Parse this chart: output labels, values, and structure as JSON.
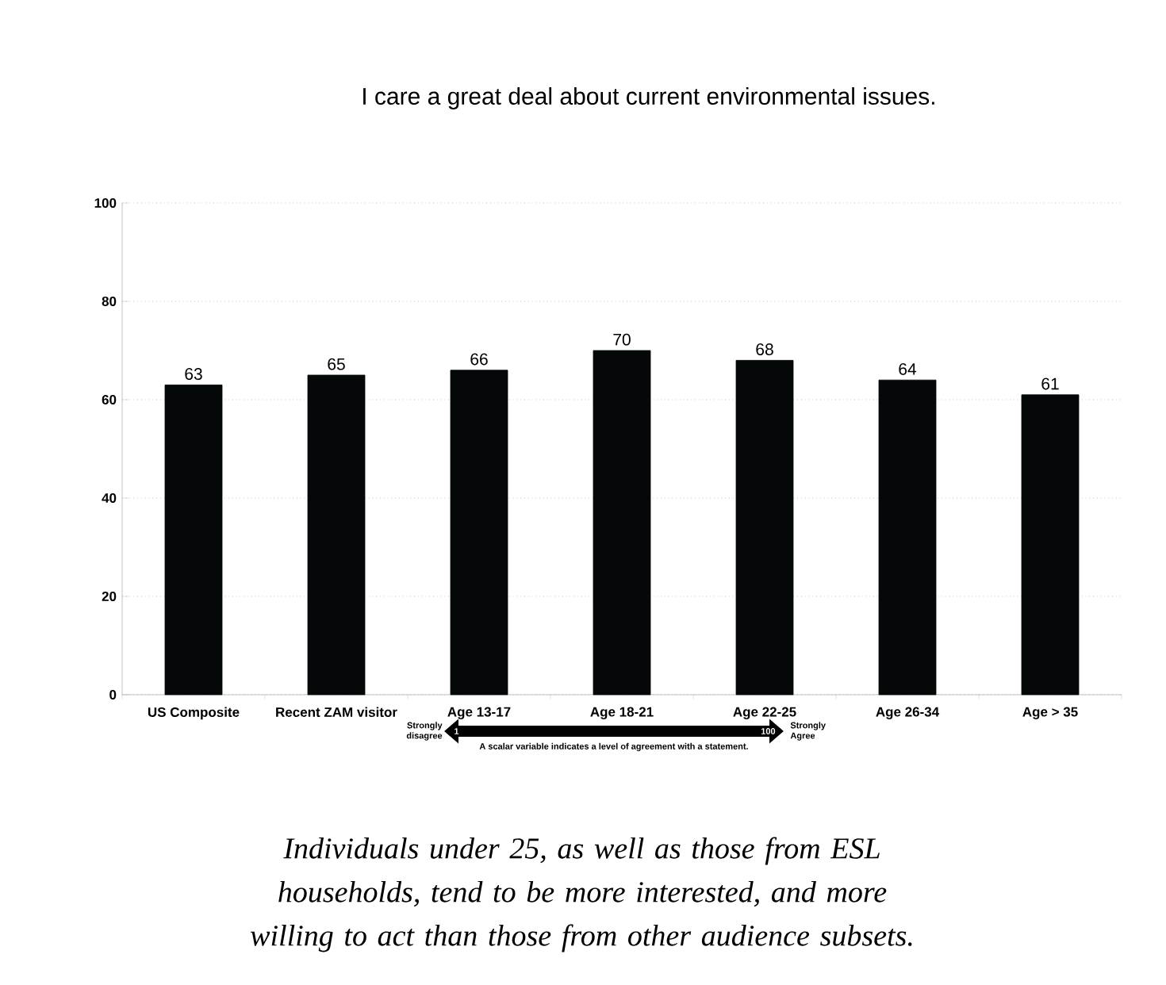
{
  "chart_data": {
    "type": "bar",
    "title": "I care a great deal about current environmental issues.",
    "categories": [
      "US Composite",
      "Recent ZAM visitor",
      "Age 13-17",
      "Age 18-21",
      "Age 22-25",
      "Age 26-34",
      "Age > 35"
    ],
    "values": [
      63,
      65,
      66,
      70,
      68,
      64,
      61
    ],
    "color": "#050808",
    "ylim": [
      0,
      100
    ],
    "yticks": [
      0,
      20,
      40,
      60,
      80,
      100
    ],
    "grid": "y",
    "data_labels": true,
    "annotations": [
      "Strongly disagree",
      "1",
      "100",
      "Strongly Agree",
      "A scalar variable indicates a level of agreement with a statement.",
      "Individuals under 25, as well as those from ESL households, tend to be more interested, and more willing to act than those from other audience subsets."
    ]
  }
}
